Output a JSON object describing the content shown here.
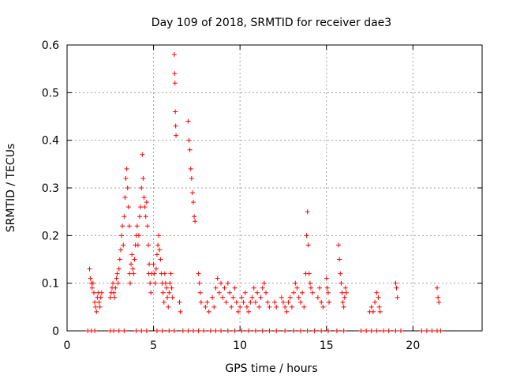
{
  "chart_data": {
    "type": "scatter",
    "title": "Day 109 of 2018, SRMTID for receiver dae3",
    "xlabel": "GPS time / hours",
    "ylabel": "SRMTID / TECUs",
    "xlim": [
      0,
      24
    ],
    "ylim": [
      0,
      0.6
    ],
    "x_ticks": [
      0,
      5,
      10,
      15,
      20
    ],
    "y_ticks": [
      0,
      0.1,
      0.2,
      0.3,
      0.4,
      0.5,
      0.6
    ],
    "x_tick_labels": [
      "0",
      "5",
      "10",
      "15",
      "20"
    ],
    "y_tick_labels": [
      "0",
      "0.1",
      "0.2",
      "0.3",
      "0.4",
      "0.5",
      "0.6"
    ],
    "grid": true,
    "marker": "+",
    "color": "#ff0000",
    "series": [
      {
        "name": "SRMTID",
        "points": [
          [
            1.3,
            0.13
          ],
          [
            1.35,
            0.11
          ],
          [
            1.4,
            0.1
          ],
          [
            1.45,
            0.09
          ],
          [
            1.5,
            0.1
          ],
          [
            1.55,
            0.08
          ],
          [
            1.6,
            0.06
          ],
          [
            1.65,
            0.05
          ],
          [
            1.7,
            0.04
          ],
          [
            1.75,
            0.07
          ],
          [
            1.8,
            0.08
          ],
          [
            1.85,
            0.06
          ],
          [
            1.9,
            0.05
          ],
          [
            1.95,
            0.07
          ],
          [
            2.0,
            0.08
          ],
          [
            2.5,
            0.07
          ],
          [
            2.55,
            0.08
          ],
          [
            2.6,
            0.09
          ],
          [
            2.65,
            0.1
          ],
          [
            2.7,
            0.08
          ],
          [
            2.75,
            0.07
          ],
          [
            2.8,
            0.09
          ],
          [
            2.85,
            0.11
          ],
          [
            2.9,
            0.12
          ],
          [
            2.95,
            0.1
          ],
          [
            3.0,
            0.13
          ],
          [
            3.05,
            0.15
          ],
          [
            3.1,
            0.17
          ],
          [
            3.15,
            0.2
          ],
          [
            3.2,
            0.22
          ],
          [
            3.25,
            0.18
          ],
          [
            3.3,
            0.24
          ],
          [
            3.35,
            0.28
          ],
          [
            3.4,
            0.32
          ],
          [
            3.45,
            0.34
          ],
          [
            3.5,
            0.3
          ],
          [
            3.55,
            0.26
          ],
          [
            3.6,
            0.22
          ],
          [
            3.62,
            0.12
          ],
          [
            3.65,
            0.1
          ],
          [
            3.7,
            0.14
          ],
          [
            3.75,
            0.16
          ],
          [
            3.8,
            0.13
          ],
          [
            3.85,
            0.12
          ],
          [
            3.9,
            0.15
          ],
          [
            3.95,
            0.18
          ],
          [
            4.0,
            0.2
          ],
          [
            4.05,
            0.22
          ],
          [
            4.1,
            0.18
          ],
          [
            4.15,
            0.2
          ],
          [
            4.2,
            0.24
          ],
          [
            4.25,
            0.26
          ],
          [
            4.3,
            0.3
          ],
          [
            4.35,
            0.37
          ],
          [
            4.4,
            0.32
          ],
          [
            4.45,
            0.28
          ],
          [
            4.5,
            0.26
          ],
          [
            4.55,
            0.24
          ],
          [
            4.6,
            0.27
          ],
          [
            4.65,
            0.22
          ],
          [
            4.7,
            0.18
          ],
          [
            4.72,
            0.12
          ],
          [
            4.75,
            0.14
          ],
          [
            4.8,
            0.1
          ],
          [
            4.85,
            0.08
          ],
          [
            4.9,
            0.12
          ],
          [
            5.0,
            0.14
          ],
          [
            5.05,
            0.12
          ],
          [
            5.1,
            0.1
          ],
          [
            5.15,
            0.13
          ],
          [
            5.2,
            0.16
          ],
          [
            5.25,
            0.18
          ],
          [
            5.3,
            0.2
          ],
          [
            5.35,
            0.17
          ],
          [
            5.4,
            0.15
          ],
          [
            5.45,
            0.12
          ],
          [
            5.5,
            0.1
          ],
          [
            5.55,
            0.08
          ],
          [
            5.6,
            0.06
          ],
          [
            5.65,
            0.12
          ],
          [
            5.7,
            0.1
          ],
          [
            5.75,
            0.09
          ],
          [
            5.8,
            0.07
          ],
          [
            5.85,
            0.05
          ],
          [
            5.9,
            0.08
          ],
          [
            5.95,
            0.1
          ],
          [
            6.0,
            0.12
          ],
          [
            6.05,
            0.09
          ],
          [
            6.1,
            0.07
          ],
          [
            6.2,
            0.58
          ],
          [
            6.22,
            0.54
          ],
          [
            6.24,
            0.52
          ],
          [
            6.26,
            0.46
          ],
          [
            6.28,
            0.43
          ],
          [
            6.3,
            0.41
          ],
          [
            6.5,
            0.06
          ],
          [
            6.55,
            0.04
          ],
          [
            7.0,
            0.44
          ],
          [
            7.05,
            0.4
          ],
          [
            7.1,
            0.38
          ],
          [
            7.15,
            0.34
          ],
          [
            7.2,
            0.32
          ],
          [
            7.25,
            0.29
          ],
          [
            7.3,
            0.27
          ],
          [
            7.35,
            0.24
          ],
          [
            7.4,
            0.23
          ],
          [
            7.6,
            0.12
          ],
          [
            7.65,
            0.1
          ],
          [
            7.7,
            0.08
          ],
          [
            7.75,
            0.06
          ],
          [
            8.0,
            0.05
          ],
          [
            8.1,
            0.06
          ],
          [
            8.2,
            0.04
          ],
          [
            8.4,
            0.07
          ],
          [
            8.5,
            0.05
          ],
          [
            8.6,
            0.09
          ],
          [
            8.7,
            0.11
          ],
          [
            8.8,
            0.08
          ],
          [
            8.9,
            0.1
          ],
          [
            9.0,
            0.07
          ],
          [
            9.1,
            0.09
          ],
          [
            9.2,
            0.06
          ],
          [
            9.3,
            0.1
          ],
          [
            9.4,
            0.08
          ],
          [
            9.5,
            0.05
          ],
          [
            9.6,
            0.07
          ],
          [
            9.7,
            0.09
          ],
          [
            9.8,
            0.06
          ],
          [
            9.9,
            0.04
          ],
          [
            10.0,
            0.05
          ],
          [
            10.1,
            0.07
          ],
          [
            10.2,
            0.06
          ],
          [
            10.3,
            0.08
          ],
          [
            10.4,
            0.05
          ],
          [
            10.5,
            0.04
          ],
          [
            10.6,
            0.06
          ],
          [
            10.7,
            0.07
          ],
          [
            10.8,
            0.09
          ],
          [
            10.9,
            0.06
          ],
          [
            11.0,
            0.08
          ],
          [
            11.1,
            0.05
          ],
          [
            11.2,
            0.07
          ],
          [
            11.3,
            0.09
          ],
          [
            11.4,
            0.1
          ],
          [
            11.5,
            0.08
          ],
          [
            11.6,
            0.06
          ],
          [
            11.7,
            0.05
          ],
          [
            12.0,
            0.06
          ],
          [
            12.1,
            0.05
          ],
          [
            12.4,
            0.07
          ],
          [
            12.5,
            0.06
          ],
          [
            12.6,
            0.05
          ],
          [
            12.7,
            0.04
          ],
          [
            12.8,
            0.06
          ],
          [
            12.9,
            0.07
          ],
          [
            13.0,
            0.05
          ],
          [
            13.1,
            0.08
          ],
          [
            13.2,
            0.1
          ],
          [
            13.3,
            0.09
          ],
          [
            13.4,
            0.07
          ],
          [
            13.5,
            0.06
          ],
          [
            13.6,
            0.08
          ],
          [
            13.7,
            0.05
          ],
          [
            13.8,
            0.12
          ],
          [
            13.85,
            0.2
          ],
          [
            13.9,
            0.25
          ],
          [
            13.95,
            0.18
          ],
          [
            14.0,
            0.12
          ],
          [
            14.05,
            0.1
          ],
          [
            14.1,
            0.09
          ],
          [
            14.2,
            0.08
          ],
          [
            14.5,
            0.07
          ],
          [
            14.6,
            0.09
          ],
          [
            14.7,
            0.06
          ],
          [
            14.8,
            0.05
          ],
          [
            15.0,
            0.11
          ],
          [
            15.05,
            0.09
          ],
          [
            15.1,
            0.08
          ],
          [
            15.15,
            0.06
          ],
          [
            15.7,
            0.18
          ],
          [
            15.75,
            0.15
          ],
          [
            15.8,
            0.12
          ],
          [
            15.85,
            0.1
          ],
          [
            15.9,
            0.08
          ],
          [
            15.95,
            0.06
          ],
          [
            16.0,
            0.05
          ],
          [
            16.05,
            0.07
          ],
          [
            16.1,
            0.09
          ],
          [
            16.15,
            0.08
          ],
          [
            17.5,
            0.04
          ],
          [
            17.6,
            0.05
          ],
          [
            17.7,
            0.04
          ],
          [
            17.8,
            0.06
          ],
          [
            17.9,
            0.08
          ],
          [
            18.0,
            0.07
          ],
          [
            18.05,
            0.05
          ],
          [
            18.1,
            0.04
          ],
          [
            19.0,
            0.1
          ],
          [
            19.05,
            0.09
          ],
          [
            19.1,
            0.07
          ],
          [
            21.4,
            0.09
          ],
          [
            21.45,
            0.07
          ],
          [
            21.5,
            0.06
          ],
          [
            1.2,
            0
          ],
          [
            1.4,
            0
          ],
          [
            1.6,
            0
          ],
          [
            2.5,
            0
          ],
          [
            2.7,
            0
          ],
          [
            3.0,
            0
          ],
          [
            3.3,
            0
          ],
          [
            4.0,
            0
          ],
          [
            4.3,
            0
          ],
          [
            4.6,
            0
          ],
          [
            5.2,
            0
          ],
          [
            5.5,
            0
          ],
          [
            5.9,
            0
          ],
          [
            6.2,
            0
          ],
          [
            6.7,
            0
          ],
          [
            7.0,
            0
          ],
          [
            7.3,
            0
          ],
          [
            7.6,
            0
          ],
          [
            7.9,
            0
          ],
          [
            8.3,
            0
          ],
          [
            8.6,
            0
          ],
          [
            8.9,
            0
          ],
          [
            9.3,
            0
          ],
          [
            9.7,
            0
          ],
          [
            10.1,
            0
          ],
          [
            10.5,
            0
          ],
          [
            10.9,
            0
          ],
          [
            11.3,
            0
          ],
          [
            11.7,
            0
          ],
          [
            12.1,
            0
          ],
          [
            12.6,
            0
          ],
          [
            13.1,
            0
          ],
          [
            13.5,
            0
          ],
          [
            13.9,
            0
          ],
          [
            14.3,
            0
          ],
          [
            14.7,
            0
          ],
          [
            15.1,
            0
          ],
          [
            15.6,
            0
          ],
          [
            16.0,
            0
          ],
          [
            17.0,
            0
          ],
          [
            17.3,
            0
          ],
          [
            17.6,
            0
          ],
          [
            17.9,
            0
          ],
          [
            18.3,
            0
          ],
          [
            18.6,
            0
          ],
          [
            19.0,
            0
          ],
          [
            19.3,
            0
          ],
          [
            20.5,
            0
          ],
          [
            20.8,
            0
          ],
          [
            21.1,
            0
          ],
          [
            21.4,
            0
          ],
          [
            21.6,
            0
          ]
        ]
      }
    ]
  }
}
